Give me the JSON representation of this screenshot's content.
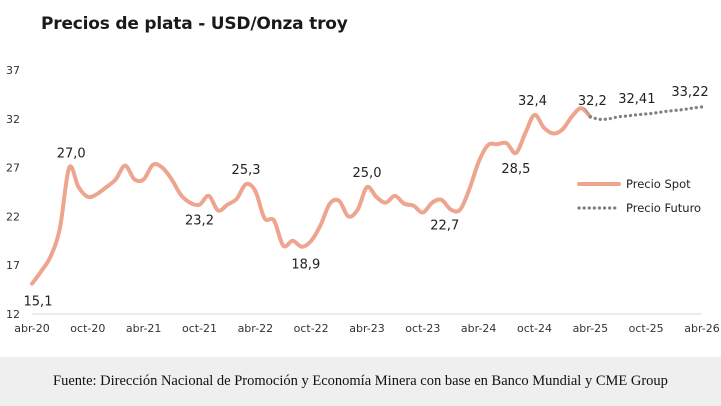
{
  "title": "Precios de plata - USD/Onza troy",
  "footer": "Fuente: Dirección Nacional de Promoción y Economía Minera con base en Banco Mundial y CME Group",
  "colors": {
    "spot": "#eea58f",
    "futuro": "#808080",
    "axis": "#d9d9d9"
  },
  "chart_data": {
    "type": "line",
    "title": "Precios de plata - USD/Onza troy",
    "xlabel": "",
    "ylabel": "",
    "ylim": [
      12,
      37
    ],
    "yticks": [
      "12",
      "17",
      "22",
      "27",
      "32",
      "37"
    ],
    "xlim": [
      "2020-04",
      "2026-04"
    ],
    "xticks": [
      "abr-20",
      "oct-20",
      "abr-21",
      "oct-21",
      "abr-22",
      "oct-22",
      "abr-23",
      "oct-23",
      "abr-24",
      "oct-24",
      "abr-25",
      "oct-25",
      "abr-26"
    ],
    "grid": false,
    "legend": "right",
    "series": [
      {
        "name": "Precio Spot",
        "style": "solid",
        "x": [
          "2020-04",
          "2020-05",
          "2020-06",
          "2020-07",
          "2020-08",
          "2020-09",
          "2020-10",
          "2020-11",
          "2020-12",
          "2021-01",
          "2021-02",
          "2021-03",
          "2021-04",
          "2021-05",
          "2021-06",
          "2021-07",
          "2021-08",
          "2021-09",
          "2021-10",
          "2021-11",
          "2021-12",
          "2022-01",
          "2022-02",
          "2022-03",
          "2022-04",
          "2022-05",
          "2022-06",
          "2022-07",
          "2022-08",
          "2022-09",
          "2022-10",
          "2022-11",
          "2022-12",
          "2023-01",
          "2023-02",
          "2023-03",
          "2023-04",
          "2023-05",
          "2023-06",
          "2023-07",
          "2023-08",
          "2023-09",
          "2023-10",
          "2023-11",
          "2023-12",
          "2024-01",
          "2024-02",
          "2024-03",
          "2024-04",
          "2024-05",
          "2024-06",
          "2024-07",
          "2024-08",
          "2024-09",
          "2024-10",
          "2024-11",
          "2024-12",
          "2025-01",
          "2025-02",
          "2025-03",
          "2025-04"
        ],
        "values": [
          15.1,
          16.4,
          17.9,
          20.8,
          27.0,
          25.0,
          24.0,
          24.3,
          25.0,
          25.8,
          27.2,
          25.8,
          25.8,
          27.3,
          27.0,
          25.8,
          24.2,
          23.4,
          23.2,
          24.1,
          22.6,
          23.2,
          23.8,
          25.3,
          24.6,
          21.8,
          21.6,
          19.0,
          19.5,
          18.9,
          19.5,
          21.1,
          23.3,
          23.6,
          22.0,
          22.7,
          25.0,
          24.0,
          23.4,
          24.1,
          23.3,
          23.1,
          22.4,
          23.4,
          23.7,
          22.7,
          22.7,
          24.8,
          27.6,
          29.3,
          29.4,
          29.5,
          28.5,
          30.5,
          32.4,
          31.1,
          30.5,
          30.9,
          32.2,
          33.1,
          32.2
        ],
        "labels": [
          {
            "x": "2020-04",
            "value": 15.1,
            "text": "15,1"
          },
          {
            "x": "2020-08",
            "value": 27.0,
            "text": "27,0"
          },
          {
            "x": "2021-10",
            "value": 23.2,
            "text": "23,2"
          },
          {
            "x": "2022-03",
            "value": 25.3,
            "text": "25,3"
          },
          {
            "x": "2022-09",
            "value": 18.9,
            "text": "18,9"
          },
          {
            "x": "2023-04",
            "value": 25.0,
            "text": "25,0"
          },
          {
            "x": "2024-01",
            "value": 22.7,
            "text": "22,7"
          },
          {
            "x": "2024-08",
            "value": 28.5,
            "text": "28,5"
          },
          {
            "x": "2024-10",
            "value": 32.4,
            "text": "32,4"
          },
          {
            "x": "2025-04",
            "value": 32.2,
            "text": "32,2"
          }
        ]
      },
      {
        "name": "Precio Futuro",
        "style": "dotted",
        "x": [
          "2025-04",
          "2025-05",
          "2025-06",
          "2025-07",
          "2025-08",
          "2025-09",
          "2025-10",
          "2025-11",
          "2025-12",
          "2026-01",
          "2026-02",
          "2026-03",
          "2026-04"
        ],
        "values": [
          32.2,
          31.95,
          32.0,
          32.2,
          32.3,
          32.41,
          32.5,
          32.6,
          32.75,
          32.85,
          32.95,
          33.1,
          33.22
        ],
        "labels": [
          {
            "x": "2025-09",
            "value": 32.41,
            "text": "32,41"
          },
          {
            "x": "2026-04",
            "value": 33.22,
            "text": "33,22"
          }
        ]
      }
    ]
  }
}
